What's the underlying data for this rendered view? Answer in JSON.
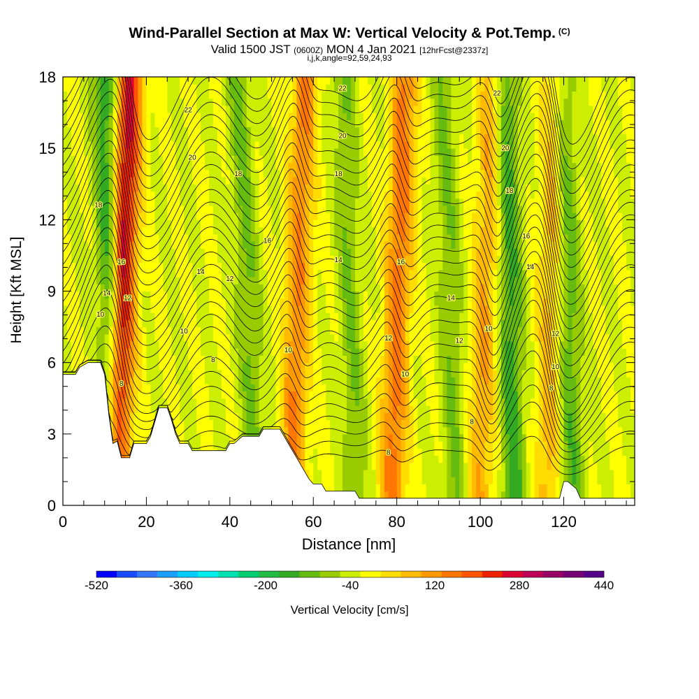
{
  "header": {
    "title": "Wind-Parallel Section at Max W: Vertical Velocity & Pot.Temp.",
    "title_unit": "(C)",
    "valid_pre": "Valid 1500 JST",
    "valid_utc": "(0600Z)",
    "valid_post": "MON 4 Jan 2021",
    "forecast": "[12hrFcst@2337z]",
    "indices": "i,j,k,angle=92,59,24,93"
  },
  "chart_data": {
    "type": "heatmap",
    "xlabel": "Distance [nm]",
    "ylabel": "Height [Kft MSL]",
    "xlim": [
      0,
      137
    ],
    "ylim": [
      0,
      18
    ],
    "x_ticks": [
      0,
      20,
      40,
      60,
      80,
      100,
      120
    ],
    "y_ticks": [
      0,
      3,
      6,
      9,
      12,
      15,
      18
    ],
    "colorbar": {
      "label": "Vertical Velocity [cm/s]",
      "range": [
        -520,
        440
      ],
      "step": 40,
      "tick_values": [
        -520,
        -360,
        -200,
        -40,
        120,
        280,
        440
      ],
      "colors": [
        "#0000ff",
        "#1a4dff",
        "#3377ff",
        "#1aa0ff",
        "#00ccff",
        "#00eeee",
        "#00e0b0",
        "#00cc70",
        "#22bb44",
        "#33aa22",
        "#66bb11",
        "#99cc00",
        "#ccee00",
        "#ffff00",
        "#ffdd00",
        "#ffbb00",
        "#ff9900",
        "#ff7700",
        "#ff5500",
        "#ee2200",
        "#dd0033",
        "#bb0055",
        "#990066",
        "#770077",
        "#550088"
      ]
    },
    "wave_crests_nm": [
      0,
      12,
      18,
      30,
      42,
      58,
      78,
      84,
      98,
      106,
      116,
      124,
      137
    ],
    "updraft_bands": [
      {
        "x_top": 16,
        "x_bottom": 13,
        "peak_cm_s": 300
      },
      {
        "x_top": 58,
        "x_bottom": 55,
        "peak_cm_s": 160
      },
      {
        "x_top": 82,
        "x_bottom": 79,
        "peak_cm_s": 180
      },
      {
        "x_top": 103,
        "x_bottom": 100,
        "peak_cm_s": 120
      },
      {
        "x_top": 118,
        "x_bottom": 116,
        "peak_cm_s": 100
      }
    ],
    "downdraft_bands": [
      {
        "x_top": 10,
        "x_bottom": 12,
        "peak_cm_s": -160
      },
      {
        "x_top": 42,
        "x_bottom": 46,
        "peak_cm_s": -90
      },
      {
        "x_top": 67,
        "x_bottom": 70,
        "peak_cm_s": -80
      },
      {
        "x_top": 91,
        "x_bottom": 94,
        "peak_cm_s": -80
      },
      {
        "x_top": 106,
        "x_bottom": 108,
        "peak_cm_s": -140
      },
      {
        "x_top": 120,
        "x_bottom": 122,
        "peak_cm_s": -110
      }
    ],
    "terrain_kft": [
      [
        0,
        5.5
      ],
      [
        3,
        5.5
      ],
      [
        4,
        5.8
      ],
      [
        6,
        6.0
      ],
      [
        9,
        6.0
      ],
      [
        10,
        5.5
      ],
      [
        11,
        3.8
      ],
      [
        12,
        2.6
      ],
      [
        13,
        2.7
      ],
      [
        14,
        2.0
      ],
      [
        16,
        2.0
      ],
      [
        17,
        2.6
      ],
      [
        18,
        2.6
      ],
      [
        19,
        2.6
      ],
      [
        20,
        2.6
      ],
      [
        21,
        2.9
      ],
      [
        22,
        3.5
      ],
      [
        23,
        4.1
      ],
      [
        25,
        4.1
      ],
      [
        26,
        3.6
      ],
      [
        27,
        3.0
      ],
      [
        28,
        2.6
      ],
      [
        30,
        2.6
      ],
      [
        31,
        2.3
      ],
      [
        39,
        2.3
      ],
      [
        40,
        2.6
      ],
      [
        41,
        2.6
      ],
      [
        43,
        2.9
      ],
      [
        47,
        2.9
      ],
      [
        48,
        3.2
      ],
      [
        52,
        3.2
      ],
      [
        53,
        2.9
      ],
      [
        54,
        2.6
      ],
      [
        55,
        2.3
      ],
      [
        56,
        2.0
      ],
      [
        57,
        1.7
      ],
      [
        58,
        1.4
      ],
      [
        59,
        1.1
      ],
      [
        60,
        0.9
      ],
      [
        62,
        0.9
      ],
      [
        63,
        0.6
      ],
      [
        65,
        0.6
      ],
      [
        70,
        0.6
      ],
      [
        71,
        0.3
      ],
      [
        119,
        0.3
      ],
      [
        120,
        1.0
      ],
      [
        121,
        1.0
      ],
      [
        123,
        0.7
      ],
      [
        124,
        0.3
      ],
      [
        137,
        0.3
      ]
    ],
    "theta_contour_levels": [
      8,
      10,
      12,
      14,
      16,
      18,
      20,
      22
    ],
    "contour_labels": [
      {
        "text": "22",
        "x": 30,
        "y": 16.6
      },
      {
        "text": "22",
        "x": 67,
        "y": 17.5
      },
      {
        "text": "22",
        "x": 104,
        "y": 17.3
      },
      {
        "text": "20",
        "x": 31,
        "y": 14.6
      },
      {
        "text": "20",
        "x": 67,
        "y": 15.5
      },
      {
        "text": "20",
        "x": 106,
        "y": 15.0
      },
      {
        "text": "18",
        "x": 8.5,
        "y": 12.6
      },
      {
        "text": "18",
        "x": 42,
        "y": 13.9
      },
      {
        "text": "18",
        "x": 66,
        "y": 13.9
      },
      {
        "text": "18",
        "x": 107,
        "y": 13.2
      },
      {
        "text": "16",
        "x": 14,
        "y": 10.2
      },
      {
        "text": "16",
        "x": 49,
        "y": 11.1
      },
      {
        "text": "16",
        "x": 81,
        "y": 10.2
      },
      {
        "text": "16",
        "x": 111,
        "y": 11.3
      },
      {
        "text": "14",
        "x": 10.5,
        "y": 8.9
      },
      {
        "text": "14",
        "x": 33,
        "y": 9.8
      },
      {
        "text": "14",
        "x": 66,
        "y": 10.3
      },
      {
        "text": "14",
        "x": 93,
        "y": 8.7
      },
      {
        "text": "14",
        "x": 112,
        "y": 10.0
      },
      {
        "text": "12",
        "x": 15.5,
        "y": 8.7
      },
      {
        "text": "12",
        "x": 40,
        "y": 9.5
      },
      {
        "text": "12",
        "x": 78,
        "y": 7.0
      },
      {
        "text": "12",
        "x": 95,
        "y": 6.9
      },
      {
        "text": "12",
        "x": 118,
        "y": 7.2
      },
      {
        "text": "10",
        "x": 9,
        "y": 8.0
      },
      {
        "text": "10",
        "x": 29,
        "y": 7.3
      },
      {
        "text": "10",
        "x": 54,
        "y": 6.5
      },
      {
        "text": "10",
        "x": 82,
        "y": 5.5
      },
      {
        "text": "10",
        "x": 102,
        "y": 7.4
      },
      {
        "text": "10",
        "x": 118,
        "y": 5.8
      },
      {
        "text": "8",
        "x": 14,
        "y": 5.1
      },
      {
        "text": "8",
        "x": 36,
        "y": 6.1
      },
      {
        "text": "8",
        "x": 98,
        "y": 3.5
      },
      {
        "text": "8",
        "x": 117,
        "y": 4.9
      },
      {
        "text": "8",
        "x": 78,
        "y": 2.2
      }
    ]
  }
}
